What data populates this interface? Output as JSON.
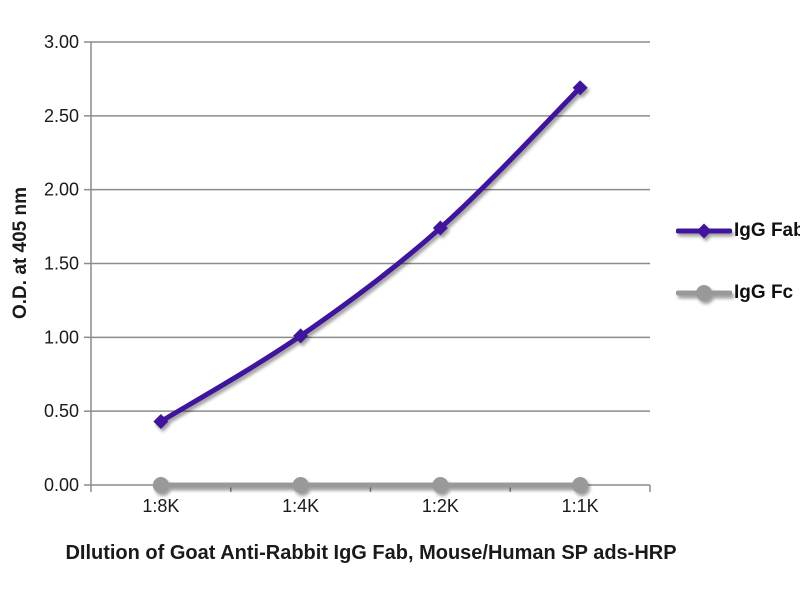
{
  "figure": {
    "background": "#ffffff"
  },
  "chart_data": {
    "type": "line",
    "title": "",
    "xlabel": "DIlution of Goat Anti-Rabbit IgG Fab, Mouse/Human SP ads-HRP",
    "ylabel": "O.D. at 405 nm",
    "categories": [
      "1:8K",
      "1:4K",
      "1:2K",
      "1:1K"
    ],
    "series": [
      {
        "name": "IgG Fab",
        "values": [
          0.43,
          1.01,
          1.74,
          2.69
        ],
        "color": "#3f169b",
        "marker": "diamond",
        "smooth": true
      },
      {
        "name": "IgG Fc",
        "values": [
          0.0,
          0.0,
          0.0,
          0.0
        ],
        "color": "#999999",
        "marker": "circle",
        "smooth": false
      }
    ],
    "ylim": [
      0,
      3
    ],
    "ytick_step": 0.5,
    "ytick_labels": [
      "0.00",
      "0.50",
      "1.00",
      "1.50",
      "2.00",
      "2.50",
      "3.00"
    ],
    "grid": true,
    "legend_position": "right",
    "axis_color": "#8c8c8c",
    "text_color": "#1a1a1a",
    "line_width": 5
  }
}
